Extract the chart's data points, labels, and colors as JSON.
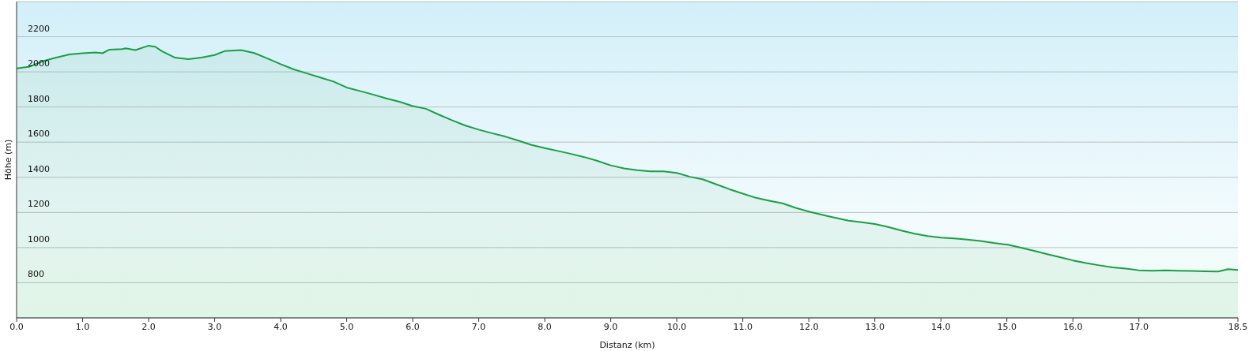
{
  "chart_data": {
    "type": "area",
    "xlabel": "Distanz  (km)",
    "ylabel": "Höhe (m)",
    "x": [
      0.0,
      0.2,
      0.4,
      0.6,
      0.8,
      1.0,
      1.2,
      1.3,
      1.4,
      1.6,
      1.65,
      1.8,
      2.0,
      2.1,
      2.2,
      2.4,
      2.6,
      2.8,
      3.0,
      3.15,
      3.4,
      3.6,
      3.8,
      4.0,
      4.2,
      4.4,
      4.6,
      4.8,
      5.0,
      5.2,
      5.4,
      5.6,
      5.8,
      6.0,
      6.2,
      6.4,
      6.6,
      6.8,
      7.0,
      7.2,
      7.4,
      7.6,
      7.8,
      8.0,
      8.2,
      8.4,
      8.6,
      8.8,
      9.0,
      9.2,
      9.4,
      9.6,
      9.8,
      10.0,
      10.2,
      10.4,
      10.6,
      10.8,
      11.0,
      11.2,
      11.4,
      11.6,
      11.8,
      12.0,
      12.3,
      12.6,
      12.8,
      13.0,
      13.2,
      13.4,
      13.6,
      13.8,
      14.0,
      14.2,
      14.4,
      14.6,
      14.8,
      15.0,
      15.2,
      15.4,
      15.6,
      15.8,
      16.0,
      16.2,
      16.4,
      16.6,
      16.8,
      17.0,
      17.2,
      17.4,
      17.6,
      17.8,
      18.0,
      18.2,
      18.35,
      18.5
    ],
    "values": [
      2019,
      2030,
      2061,
      2081,
      2099,
      2106,
      2110,
      2106,
      2126,
      2130,
      2134,
      2124,
      2149,
      2143,
      2118,
      2081,
      2072,
      2081,
      2096,
      2118,
      2124,
      2107,
      2076,
      2044,
      2014,
      1991,
      1968,
      1945,
      1911,
      1891,
      1871,
      1849,
      1830,
      1805,
      1790,
      1756,
      1724,
      1694,
      1671,
      1651,
      1632,
      1609,
      1584,
      1566,
      1550,
      1533,
      1515,
      1493,
      1468,
      1451,
      1441,
      1434,
      1434,
      1425,
      1403,
      1388,
      1360,
      1332,
      1307,
      1283,
      1267,
      1252,
      1226,
      1205,
      1178,
      1153,
      1144,
      1134,
      1117,
      1097,
      1079,
      1066,
      1057,
      1052,
      1046,
      1038,
      1026,
      1017,
      1001,
      983,
      964,
      946,
      927,
      912,
      899,
      887,
      881,
      871,
      868,
      870,
      868,
      867,
      865,
      864,
      877,
      873
    ],
    "color": "#1a9e45",
    "xlim": [
      0,
      18.5
    ],
    "xticks": [
      {
        "value": 0,
        "label": "0.0"
      },
      {
        "value": 1,
        "label": "1.0"
      },
      {
        "value": 2,
        "label": "2.0"
      },
      {
        "value": 3,
        "label": "3.0"
      },
      {
        "value": 4,
        "label": "4.0"
      },
      {
        "value": 5,
        "label": "5.0"
      },
      {
        "value": 6,
        "label": "6.0"
      },
      {
        "value": 7,
        "label": "7.0"
      },
      {
        "value": 8,
        "label": "8.0"
      },
      {
        "value": 9,
        "label": "9.0"
      },
      {
        "value": 10,
        "label": "10.0"
      },
      {
        "value": 11,
        "label": "11.0"
      },
      {
        "value": 12,
        "label": "12.0"
      },
      {
        "value": 13,
        "label": "13.0"
      },
      {
        "value": 14,
        "label": "14.0"
      },
      {
        "value": 15,
        "label": "15.0"
      },
      {
        "value": 16,
        "label": "16.0"
      },
      {
        "value": 17,
        "label": "17.0"
      },
      {
        "value": 18.5,
        "label": "18.5"
      }
    ],
    "ylim": [
      600,
      2400
    ],
    "yticks": [
      800,
      1000,
      1200,
      1400,
      1600,
      1800,
      2000,
      2200
    ],
    "grid": "y"
  }
}
